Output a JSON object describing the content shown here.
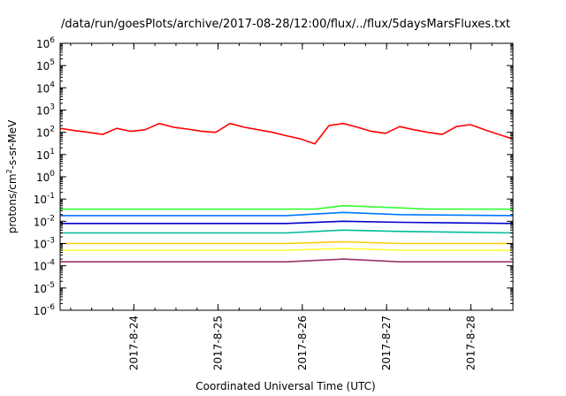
{
  "chart_data": {
    "type": "line",
    "title": "/data/run/goesPlots/archive/2017-08-28/12:00/flux/../flux/5daysMarsFluxes.txt",
    "xlabel": "Coordinated Universal Time (UTC)",
    "ylabel": {
      "pre": "protons/cm",
      "sup": "2",
      "post": "-s-sr-MeV"
    },
    "yscale": "log",
    "ylim_exp": [
      -6,
      6
    ],
    "ytick_base": "10",
    "ytick_exponents": [
      "-6",
      "-5",
      "-4",
      "-3",
      "-2",
      "-1",
      "0",
      "1",
      "2",
      "3",
      "4",
      "5",
      "6"
    ],
    "x_start": "2017-08-23T03:00",
    "x_end": "2017-08-28T12:00",
    "x_ticks": [
      "2017-8-24",
      "2017-8-25",
      "2017-8-26",
      "2017-8-27",
      "2017-8-28"
    ],
    "x_tick_dates": [
      "2017-08-24",
      "2017-08-25",
      "2017-08-26",
      "2017-08-27",
      "2017-08-28"
    ],
    "grid": false,
    "series_style": [
      {
        "color": "#ff0000"
      },
      {
        "color": "#33ff33"
      },
      {
        "color": "#0077ff"
      },
      {
        "color": "#0000cc"
      },
      {
        "color": "#00bb99"
      },
      {
        "color": "#ffcc00"
      },
      {
        "color": "#ffff33"
      },
      {
        "color": "#993366"
      }
    ],
    "series": [
      {
        "values": [
          [
            0,
            150
          ],
          [
            1,
            120
          ],
          [
            2,
            100
          ],
          [
            3,
            80
          ],
          [
            4,
            150
          ],
          [
            5,
            110
          ],
          [
            6,
            130
          ],
          [
            7,
            250
          ],
          [
            8,
            170
          ],
          [
            9,
            140
          ],
          [
            10,
            110
          ],
          [
            11,
            100
          ],
          [
            12,
            250
          ],
          [
            13,
            170
          ],
          [
            14,
            130
          ],
          [
            15,
            100
          ],
          [
            16,
            70
          ],
          [
            17,
            50
          ],
          [
            18,
            30
          ],
          [
            19,
            200
          ],
          [
            20,
            250
          ],
          [
            21,
            170
          ],
          [
            22,
            110
          ],
          [
            23,
            90
          ],
          [
            24,
            180
          ],
          [
            25,
            130
          ],
          [
            26,
            100
          ],
          [
            27,
            80
          ],
          [
            28,
            180
          ],
          [
            29,
            220
          ],
          [
            30,
            130
          ],
          [
            31,
            80
          ],
          [
            32,
            50
          ]
        ]
      },
      {
        "values": [
          [
            0,
            0.035
          ],
          [
            2,
            0.035
          ],
          [
            4,
            0.035
          ],
          [
            6,
            0.035
          ],
          [
            8,
            0.035
          ],
          [
            10,
            0.035
          ],
          [
            12,
            0.035
          ],
          [
            14,
            0.035
          ],
          [
            16,
            0.035
          ],
          [
            18,
            0.035
          ],
          [
            20,
            0.05
          ],
          [
            22,
            0.045
          ],
          [
            24,
            0.04
          ],
          [
            26,
            0.035
          ],
          [
            28,
            0.035
          ],
          [
            30,
            0.035
          ],
          [
            32,
            0.035
          ]
        ]
      },
      {
        "values": [
          [
            0,
            0.018
          ],
          [
            8,
            0.018
          ],
          [
            16,
            0.018
          ],
          [
            20,
            0.025
          ],
          [
            24,
            0.02
          ],
          [
            32,
            0.018
          ]
        ]
      },
      {
        "values": [
          [
            0,
            0.008
          ],
          [
            8,
            0.008
          ],
          [
            16,
            0.008
          ],
          [
            20,
            0.01
          ],
          [
            24,
            0.009
          ],
          [
            32,
            0.008
          ]
        ]
      },
      {
        "values": [
          [
            0,
            0.003
          ],
          [
            8,
            0.003
          ],
          [
            16,
            0.003
          ],
          [
            20,
            0.004
          ],
          [
            24,
            0.0035
          ],
          [
            32,
            0.003
          ]
        ]
      },
      {
        "values": [
          [
            0,
            0.001
          ],
          [
            8,
            0.001
          ],
          [
            16,
            0.001
          ],
          [
            20,
            0.0012
          ],
          [
            24,
            0.001
          ],
          [
            32,
            0.001
          ]
        ]
      },
      {
        "values": [
          [
            0,
            0.0005
          ],
          [
            8,
            0.0005
          ],
          [
            16,
            0.0005
          ],
          [
            20,
            0.0006
          ],
          [
            24,
            0.0005
          ],
          [
            32,
            0.0005
          ]
        ]
      },
      {
        "values": [
          [
            0,
            0.00015
          ],
          [
            8,
            0.00015
          ],
          [
            16,
            0.00015
          ],
          [
            20,
            0.0002
          ],
          [
            24,
            0.00015
          ],
          [
            32,
            0.00015
          ]
        ]
      }
    ]
  }
}
